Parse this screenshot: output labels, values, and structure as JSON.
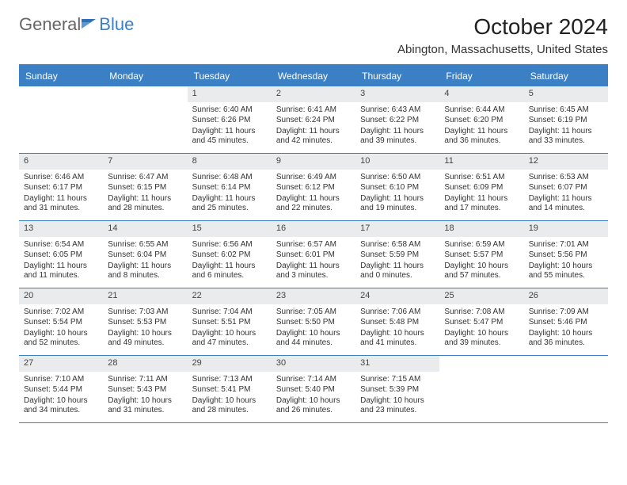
{
  "brand": {
    "part1": "General",
    "part2": "Blue"
  },
  "header": {
    "month_title": "October 2024",
    "location": "Abington, Massachusetts, United States"
  },
  "colors": {
    "accent": "#3b7fc4",
    "header_text": "#ffffff",
    "daynum_bg": "#e9ebec",
    "text": "#333333",
    "bg": "#ffffff"
  },
  "weekdays": [
    "Sunday",
    "Monday",
    "Tuesday",
    "Wednesday",
    "Thursday",
    "Friday",
    "Saturday"
  ],
  "weeks": [
    [
      {
        "empty": true
      },
      {
        "empty": true
      },
      {
        "num": "1",
        "sunrise": "Sunrise: 6:40 AM",
        "sunset": "Sunset: 6:26 PM",
        "daylight": "Daylight: 11 hours and 45 minutes."
      },
      {
        "num": "2",
        "sunrise": "Sunrise: 6:41 AM",
        "sunset": "Sunset: 6:24 PM",
        "daylight": "Daylight: 11 hours and 42 minutes."
      },
      {
        "num": "3",
        "sunrise": "Sunrise: 6:43 AM",
        "sunset": "Sunset: 6:22 PM",
        "daylight": "Daylight: 11 hours and 39 minutes."
      },
      {
        "num": "4",
        "sunrise": "Sunrise: 6:44 AM",
        "sunset": "Sunset: 6:20 PM",
        "daylight": "Daylight: 11 hours and 36 minutes."
      },
      {
        "num": "5",
        "sunrise": "Sunrise: 6:45 AM",
        "sunset": "Sunset: 6:19 PM",
        "daylight": "Daylight: 11 hours and 33 minutes."
      }
    ],
    [
      {
        "num": "6",
        "sunrise": "Sunrise: 6:46 AM",
        "sunset": "Sunset: 6:17 PM",
        "daylight": "Daylight: 11 hours and 31 minutes."
      },
      {
        "num": "7",
        "sunrise": "Sunrise: 6:47 AM",
        "sunset": "Sunset: 6:15 PM",
        "daylight": "Daylight: 11 hours and 28 minutes."
      },
      {
        "num": "8",
        "sunrise": "Sunrise: 6:48 AM",
        "sunset": "Sunset: 6:14 PM",
        "daylight": "Daylight: 11 hours and 25 minutes."
      },
      {
        "num": "9",
        "sunrise": "Sunrise: 6:49 AM",
        "sunset": "Sunset: 6:12 PM",
        "daylight": "Daylight: 11 hours and 22 minutes."
      },
      {
        "num": "10",
        "sunrise": "Sunrise: 6:50 AM",
        "sunset": "Sunset: 6:10 PM",
        "daylight": "Daylight: 11 hours and 19 minutes."
      },
      {
        "num": "11",
        "sunrise": "Sunrise: 6:51 AM",
        "sunset": "Sunset: 6:09 PM",
        "daylight": "Daylight: 11 hours and 17 minutes."
      },
      {
        "num": "12",
        "sunrise": "Sunrise: 6:53 AM",
        "sunset": "Sunset: 6:07 PM",
        "daylight": "Daylight: 11 hours and 14 minutes."
      }
    ],
    [
      {
        "num": "13",
        "sunrise": "Sunrise: 6:54 AM",
        "sunset": "Sunset: 6:05 PM",
        "daylight": "Daylight: 11 hours and 11 minutes."
      },
      {
        "num": "14",
        "sunrise": "Sunrise: 6:55 AM",
        "sunset": "Sunset: 6:04 PM",
        "daylight": "Daylight: 11 hours and 8 minutes."
      },
      {
        "num": "15",
        "sunrise": "Sunrise: 6:56 AM",
        "sunset": "Sunset: 6:02 PM",
        "daylight": "Daylight: 11 hours and 6 minutes."
      },
      {
        "num": "16",
        "sunrise": "Sunrise: 6:57 AM",
        "sunset": "Sunset: 6:01 PM",
        "daylight": "Daylight: 11 hours and 3 minutes."
      },
      {
        "num": "17",
        "sunrise": "Sunrise: 6:58 AM",
        "sunset": "Sunset: 5:59 PM",
        "daylight": "Daylight: 11 hours and 0 minutes."
      },
      {
        "num": "18",
        "sunrise": "Sunrise: 6:59 AM",
        "sunset": "Sunset: 5:57 PM",
        "daylight": "Daylight: 10 hours and 57 minutes."
      },
      {
        "num": "19",
        "sunrise": "Sunrise: 7:01 AM",
        "sunset": "Sunset: 5:56 PM",
        "daylight": "Daylight: 10 hours and 55 minutes."
      }
    ],
    [
      {
        "num": "20",
        "sunrise": "Sunrise: 7:02 AM",
        "sunset": "Sunset: 5:54 PM",
        "daylight": "Daylight: 10 hours and 52 minutes."
      },
      {
        "num": "21",
        "sunrise": "Sunrise: 7:03 AM",
        "sunset": "Sunset: 5:53 PM",
        "daylight": "Daylight: 10 hours and 49 minutes."
      },
      {
        "num": "22",
        "sunrise": "Sunrise: 7:04 AM",
        "sunset": "Sunset: 5:51 PM",
        "daylight": "Daylight: 10 hours and 47 minutes."
      },
      {
        "num": "23",
        "sunrise": "Sunrise: 7:05 AM",
        "sunset": "Sunset: 5:50 PM",
        "daylight": "Daylight: 10 hours and 44 minutes."
      },
      {
        "num": "24",
        "sunrise": "Sunrise: 7:06 AM",
        "sunset": "Sunset: 5:48 PM",
        "daylight": "Daylight: 10 hours and 41 minutes."
      },
      {
        "num": "25",
        "sunrise": "Sunrise: 7:08 AM",
        "sunset": "Sunset: 5:47 PM",
        "daylight": "Daylight: 10 hours and 39 minutes."
      },
      {
        "num": "26",
        "sunrise": "Sunrise: 7:09 AM",
        "sunset": "Sunset: 5:46 PM",
        "daylight": "Daylight: 10 hours and 36 minutes."
      }
    ],
    [
      {
        "num": "27",
        "sunrise": "Sunrise: 7:10 AM",
        "sunset": "Sunset: 5:44 PM",
        "daylight": "Daylight: 10 hours and 34 minutes."
      },
      {
        "num": "28",
        "sunrise": "Sunrise: 7:11 AM",
        "sunset": "Sunset: 5:43 PM",
        "daylight": "Daylight: 10 hours and 31 minutes."
      },
      {
        "num": "29",
        "sunrise": "Sunrise: 7:13 AM",
        "sunset": "Sunset: 5:41 PM",
        "daylight": "Daylight: 10 hours and 28 minutes."
      },
      {
        "num": "30",
        "sunrise": "Sunrise: 7:14 AM",
        "sunset": "Sunset: 5:40 PM",
        "daylight": "Daylight: 10 hours and 26 minutes."
      },
      {
        "num": "31",
        "sunrise": "Sunrise: 7:15 AM",
        "sunset": "Sunset: 5:39 PM",
        "daylight": "Daylight: 10 hours and 23 minutes."
      },
      {
        "empty": true
      },
      {
        "empty": true
      }
    ]
  ]
}
